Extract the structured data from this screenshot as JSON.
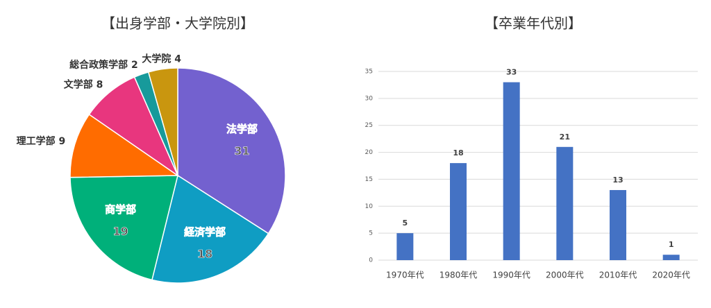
{
  "chart_data": [
    {
      "type": "pie",
      "title": "【出身学部・大学院別】",
      "categories": [
        "法学部",
        "経済学部",
        "商学部",
        "理工学部",
        "文学部",
        "総合政策学部",
        "大学院"
      ],
      "values": [
        31,
        18,
        19,
        9,
        8,
        2,
        4
      ],
      "colors": [
        "#7361cf",
        "#0f9dc3",
        "#00b07a",
        "#ff6c00",
        "#e8367e",
        "#179a9b",
        "#c9960f"
      ]
    },
    {
      "type": "bar",
      "title": "【卒業年代別】",
      "categories": [
        "1970年代",
        "1980年代",
        "1990年代",
        "2000年代",
        "2010年代",
        "2020年代"
      ],
      "values": [
        5,
        18,
        33,
        21,
        13,
        1
      ],
      "color": "#4472c4",
      "ylim": [
        0,
        35
      ],
      "yticks": [
        0,
        5,
        10,
        15,
        20,
        25,
        30,
        35
      ],
      "grid": true
    }
  ]
}
